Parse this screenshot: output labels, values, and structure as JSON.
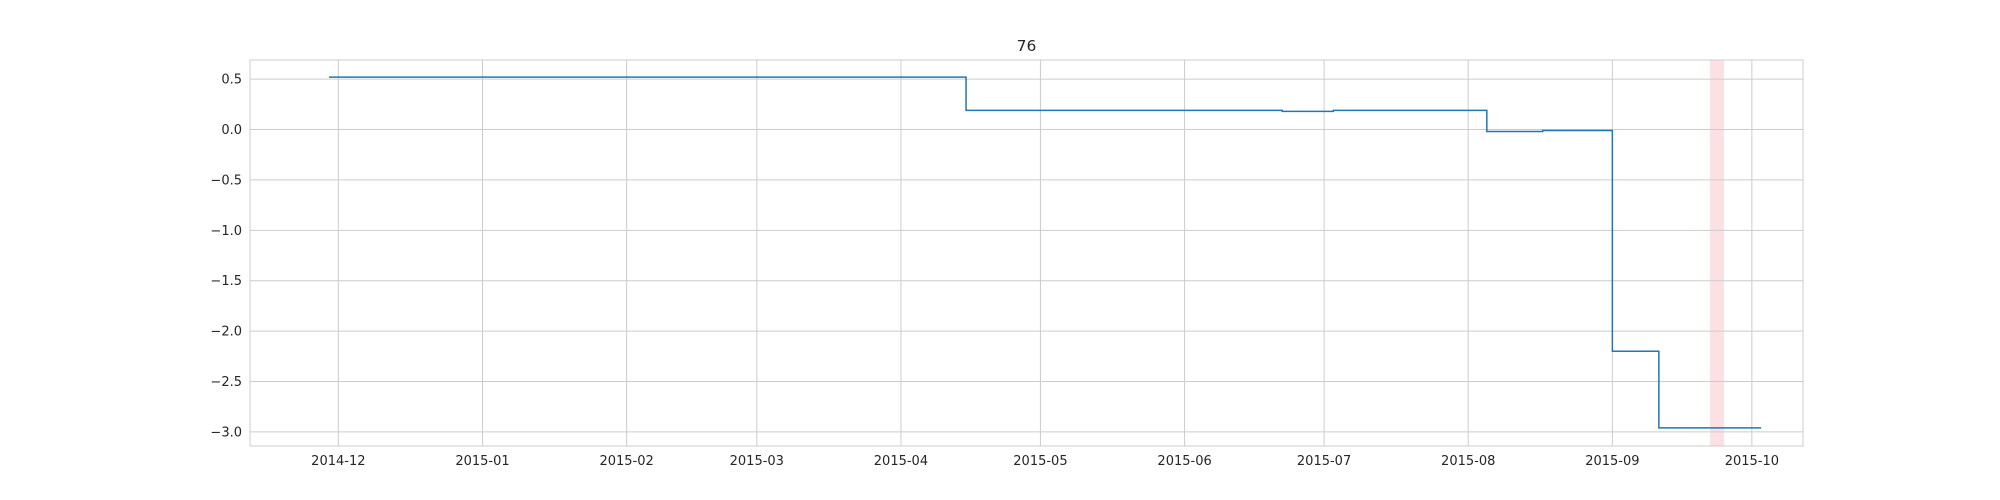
{
  "chart_data": {
    "type": "line",
    "title": "76",
    "xlabel": "",
    "ylabel": "",
    "grid": true,
    "step": "post",
    "line_color": "#1f77b4",
    "highlight_color": "#f8c9cc",
    "xlim": [
      "2014-11-12",
      "2015-10-12"
    ],
    "ylim": [
      -3.14,
      0.69
    ],
    "xticks": [
      {
        "date": "2014-12-01",
        "label": "2014-12"
      },
      {
        "date": "2015-01-01",
        "label": "2015-01"
      },
      {
        "date": "2015-02-01",
        "label": "2015-02"
      },
      {
        "date": "2015-03-01",
        "label": "2015-03"
      },
      {
        "date": "2015-04-01",
        "label": "2015-04"
      },
      {
        "date": "2015-05-01",
        "label": "2015-05"
      },
      {
        "date": "2015-06-01",
        "label": "2015-06"
      },
      {
        "date": "2015-07-01",
        "label": "2015-07"
      },
      {
        "date": "2015-08-01",
        "label": "2015-08"
      },
      {
        "date": "2015-09-01",
        "label": "2015-09"
      },
      {
        "date": "2015-10-01",
        "label": "2015-10"
      }
    ],
    "yticks": [
      {
        "value": 0.5,
        "label": "0.5"
      },
      {
        "value": 0.0,
        "label": "0.0"
      },
      {
        "value": -0.5,
        "label": "−0.5"
      },
      {
        "value": -1.0,
        "label": "−1.0"
      },
      {
        "value": -1.5,
        "label": "−1.5"
      },
      {
        "value": -2.0,
        "label": "−2.0"
      },
      {
        "value": -2.5,
        "label": "−2.5"
      },
      {
        "value": -3.0,
        "label": "−3.0"
      }
    ],
    "highlight_span": [
      "2015-09-22",
      "2015-09-25"
    ],
    "series": [
      {
        "x": [
          "2014-11-29",
          "2015-04-15",
          "2015-06-22",
          "2015-07-03",
          "2015-08-05",
          "2015-08-17",
          "2015-09-01",
          "2015-09-11",
          "2015-10-03"
        ],
        "y": [
          0.52,
          0.19,
          0.18,
          0.19,
          -0.02,
          -0.01,
          -2.2,
          -2.96,
          -2.96
        ]
      }
    ]
  }
}
